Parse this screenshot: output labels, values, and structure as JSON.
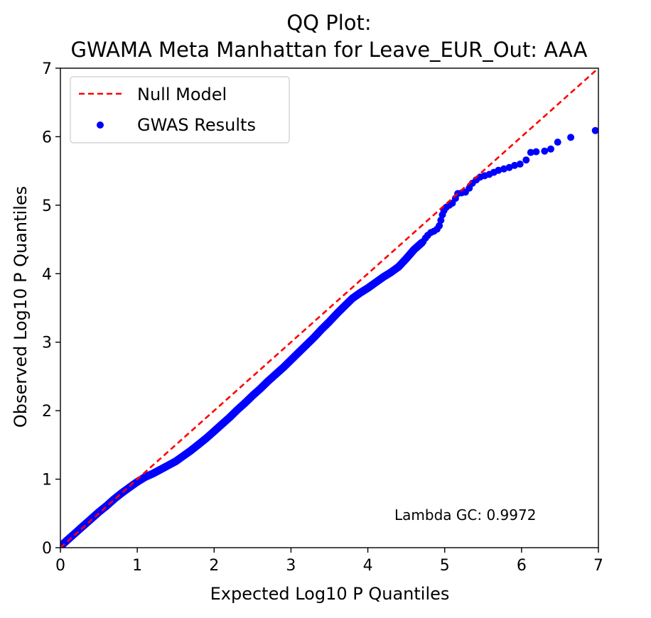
{
  "chart_data": {
    "type": "scatter",
    "title_line1": "QQ Plot:",
    "title_line2": "GWAMA Meta Manhattan for Leave_EUR_Out: AAA",
    "xlabel": "Expected Log10 P Quantiles",
    "ylabel": "Observed Log10 P Quantiles",
    "xlim": [
      0,
      7
    ],
    "ylim": [
      0,
      7
    ],
    "xticks": [
      "0",
      "1",
      "2",
      "3",
      "4",
      "5",
      "6",
      "7"
    ],
    "yticks": [
      "0",
      "1",
      "2",
      "3",
      "4",
      "5",
      "6",
      "7"
    ],
    "grid": false,
    "legend_position": "top-left",
    "legend": [
      {
        "label": "Null Model",
        "type": "dashed-line",
        "color": "#ff0000"
      },
      {
        "label": "GWAS Results",
        "type": "marker",
        "color": "#0000ff"
      }
    ],
    "annotation": "Lambda GC: 0.9972",
    "null_line": {
      "x": [
        0,
        7
      ],
      "y": [
        0,
        7
      ],
      "color": "#ff0000",
      "style": "dashed"
    },
    "series": [
      {
        "name": "GWAS Results",
        "color": "#0000ff",
        "curve_x": [
          0.0,
          0.1,
          0.2,
          0.3,
          0.4,
          0.5,
          0.6,
          0.7,
          0.8,
          0.9,
          1.0,
          1.1,
          1.2,
          1.3,
          1.4,
          1.5,
          1.6,
          1.7,
          1.8,
          1.9,
          2.0,
          2.1,
          2.2,
          2.3,
          2.4,
          2.5,
          2.6,
          2.7,
          2.8,
          2.9,
          3.0,
          3.1,
          3.2,
          3.3,
          3.4,
          3.5,
          3.6,
          3.7,
          3.8,
          3.9,
          4.0,
          4.1,
          4.2,
          4.3,
          4.4,
          4.5,
          4.6,
          4.7
        ],
        "curve_y": [
          0.02,
          0.12,
          0.22,
          0.32,
          0.42,
          0.52,
          0.61,
          0.71,
          0.8,
          0.88,
          0.96,
          1.03,
          1.08,
          1.14,
          1.2,
          1.26,
          1.34,
          1.42,
          1.51,
          1.6,
          1.7,
          1.8,
          1.9,
          2.01,
          2.11,
          2.22,
          2.32,
          2.43,
          2.53,
          2.63,
          2.74,
          2.85,
          2.96,
          3.07,
          3.19,
          3.3,
          3.42,
          3.53,
          3.64,
          3.72,
          3.79,
          3.87,
          3.95,
          4.02,
          4.1,
          4.22,
          4.35,
          4.45
        ],
        "points": [
          {
            "x": 4.72,
            "y": 4.47
          },
          {
            "x": 4.75,
            "y": 4.52
          },
          {
            "x": 4.78,
            "y": 4.56
          },
          {
            "x": 4.82,
            "y": 4.6
          },
          {
            "x": 4.86,
            "y": 4.62
          },
          {
            "x": 4.9,
            "y": 4.65
          },
          {
            "x": 4.93,
            "y": 4.7
          },
          {
            "x": 4.95,
            "y": 4.78
          },
          {
            "x": 4.97,
            "y": 4.86
          },
          {
            "x": 4.99,
            "y": 4.92
          },
          {
            "x": 5.02,
            "y": 4.97
          },
          {
            "x": 5.06,
            "y": 5.0
          },
          {
            "x": 5.1,
            "y": 5.03
          },
          {
            "x": 5.14,
            "y": 5.1
          },
          {
            "x": 5.17,
            "y": 5.17
          },
          {
            "x": 5.22,
            "y": 5.18
          },
          {
            "x": 5.27,
            "y": 5.19
          },
          {
            "x": 5.32,
            "y": 5.25
          },
          {
            "x": 5.36,
            "y": 5.32
          },
          {
            "x": 5.41,
            "y": 5.37
          },
          {
            "x": 5.46,
            "y": 5.41
          },
          {
            "x": 5.52,
            "y": 5.43
          },
          {
            "x": 5.58,
            "y": 5.45
          },
          {
            "x": 5.64,
            "y": 5.48
          },
          {
            "x": 5.7,
            "y": 5.51
          },
          {
            "x": 5.77,
            "y": 5.53
          },
          {
            "x": 5.84,
            "y": 5.55
          },
          {
            "x": 5.91,
            "y": 5.58
          },
          {
            "x": 5.98,
            "y": 5.6
          },
          {
            "x": 6.06,
            "y": 5.66
          },
          {
            "x": 6.12,
            "y": 5.77
          },
          {
            "x": 6.19,
            "y": 5.78
          },
          {
            "x": 6.3,
            "y": 5.79
          },
          {
            "x": 6.38,
            "y": 5.82
          },
          {
            "x": 6.47,
            "y": 5.92
          },
          {
            "x": 6.64,
            "y": 5.99
          },
          {
            "x": 6.96,
            "y": 6.09
          }
        ]
      }
    ]
  }
}
